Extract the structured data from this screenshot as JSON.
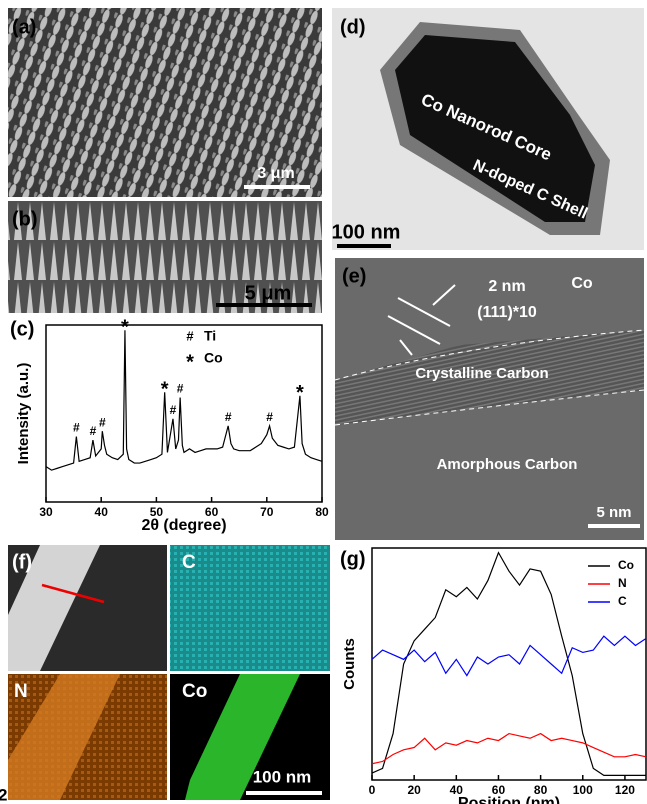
{
  "panels": {
    "a": {
      "label": "(a)",
      "scale_bar": "3 μm"
    },
    "b": {
      "label": "(b)",
      "scale_bar": "5 μm"
    },
    "c": {
      "label": "(c)"
    },
    "d": {
      "label": "(d)",
      "core": "Co Nanorod Core",
      "shell": "N-doped C Shell",
      "scale_bar": "100 nm"
    },
    "e": {
      "label": "(e)",
      "spacing": "2 nm",
      "plane": "(111)*10",
      "element": "Co",
      "crystalline": "Crystalline Carbon",
      "amorphous": "Amorphous Carbon",
      "scale_bar": "5 nm"
    },
    "f": {
      "label": "(f)",
      "map_c": "C",
      "map_n": "N",
      "map_co": "Co",
      "scale_bar": "100 nm"
    },
    "g": {
      "label": "(g)"
    },
    "corner_text": "2"
  },
  "chart_data": [
    {
      "type": "line",
      "x_label": "2θ (degree)",
      "y_label": "Intensity (a.u.)",
      "legend": [
        {
          "symbol": "#",
          "label": "Ti"
        },
        {
          "symbol": "*",
          "label": "Co"
        }
      ],
      "x": [
        30,
        31,
        32,
        33,
        34,
        35,
        35.5,
        36,
        37,
        38,
        38.5,
        39,
        40,
        40.2,
        40.6,
        41,
        42,
        43,
        44,
        44.3,
        44.6,
        45,
        46,
        47,
        48,
        49,
        50,
        51,
        51.5,
        52,
        53,
        53.5,
        54,
        54.3,
        54.7,
        55,
        56,
        57,
        58,
        59,
        60,
        61,
        62,
        63,
        63.5,
        64,
        65,
        66,
        67,
        68,
        69,
        70,
        70.5,
        71,
        72,
        73,
        74,
        75,
        76,
        76.4,
        77,
        78,
        79,
        80
      ],
      "series": [
        {
          "color": "#000000",
          "values": [
            20,
            18,
            19,
            20,
            21,
            22,
            37,
            23,
            24,
            25,
            35,
            26,
            30,
            40,
            32,
            27,
            25,
            24,
            27,
            97,
            30,
            24,
            22,
            22,
            23,
            24,
            25,
            27,
            62,
            28,
            47,
            30,
            35,
            59,
            32,
            28,
            30,
            28,
            29,
            30,
            30,
            30,
            31,
            43,
            33,
            30,
            29,
            29,
            29,
            31,
            33,
            38,
            43,
            36,
            32,
            31,
            30,
            31,
            60,
            33,
            27,
            25,
            24,
            23
          ]
        }
      ],
      "annotations": [
        {
          "text": "#",
          "x": 35.5
        },
        {
          "text": "#",
          "x": 38.5
        },
        {
          "text": "#",
          "x": 40.2
        },
        {
          "text": "*",
          "x": 44.3
        },
        {
          "text": "*",
          "x": 51.5
        },
        {
          "text": "#",
          "x": 53
        },
        {
          "text": "#",
          "x": 54.3
        },
        {
          "text": "#",
          "x": 63
        },
        {
          "text": "#",
          "x": 70.5
        },
        {
          "text": "*",
          "x": 76
        }
      ],
      "xlim": [
        30,
        80
      ],
      "xticks": [
        30,
        40,
        50,
        60,
        70,
        80
      ],
      "ylim": [
        0,
        100
      ]
    },
    {
      "type": "line",
      "x_label": "Position (nm)",
      "y_label": "Counts",
      "legend_position": "upper right",
      "x": [
        0,
        5,
        10,
        15,
        20,
        25,
        30,
        35,
        40,
        45,
        50,
        55,
        60,
        65,
        70,
        75,
        80,
        85,
        90,
        95,
        100,
        105,
        110,
        115,
        120,
        125,
        130
      ],
      "series": [
        {
          "name": "Co",
          "color": "#000000",
          "values": [
            0.3,
            0.5,
            2,
            5,
            6,
            6.5,
            7,
            8.2,
            7.9,
            8.3,
            7.8,
            8.6,
            9.8,
            9,
            8.4,
            9.1,
            9,
            8,
            6.2,
            4.5,
            2,
            0.5,
            0.2,
            0.2,
            0.2,
            0.2,
            0.2
          ]
        },
        {
          "name": "N",
          "color": "#ff0000",
          "values": [
            0.7,
            0.8,
            1.1,
            1.3,
            1.4,
            1.8,
            1.3,
            1.6,
            1.5,
            1.7,
            1.6,
            1.8,
            1.7,
            2,
            1.9,
            1.8,
            2,
            1.7,
            1.8,
            1.7,
            1.6,
            1.4,
            1.2,
            1.0,
            1.0,
            1.1,
            1.0
          ]
        },
        {
          "name": "C",
          "color": "#0000ff",
          "values": [
            5.2,
            5.6,
            5.4,
            5.2,
            5.6,
            5.1,
            5.5,
            4.6,
            5.2,
            4.5,
            5.3,
            5.0,
            5.3,
            5.4,
            5.0,
            5.8,
            5.4,
            5.0,
            4.6,
            5.7,
            5.5,
            5.6,
            6.2,
            5.8,
            6.2,
            5.8,
            6.1
          ]
        }
      ],
      "xlim": [
        0,
        130
      ],
      "xticks": [
        0,
        20,
        40,
        60,
        80,
        100,
        120
      ],
      "ylim": [
        0,
        10
      ]
    }
  ]
}
